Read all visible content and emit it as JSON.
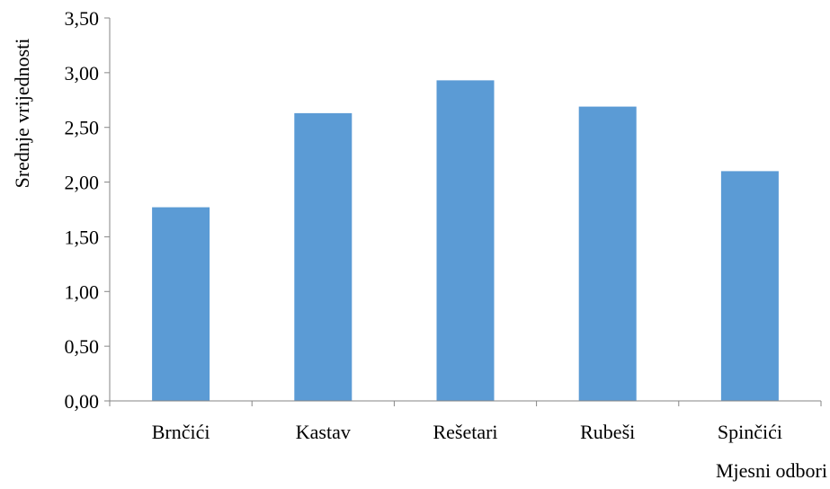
{
  "chart_data": {
    "type": "bar",
    "title": "",
    "xlabel": "Mjesni odbori",
    "ylabel": "Srednje vrijednosti",
    "categories": [
      "Brnčići",
      "Kastav",
      "Rešetari",
      "Rubeši",
      "Spinčići"
    ],
    "values": [
      1.77,
      2.63,
      2.93,
      2.69,
      2.1
    ],
    "ylim": [
      0,
      3.5
    ],
    "yticks": [
      0,
      0.5,
      1.0,
      1.5,
      2.0,
      2.5,
      3.0,
      3.5
    ],
    "ytick_labels": [
      "0,00",
      "0,50",
      "1,00",
      "1,50",
      "2,00",
      "2,50",
      "3,00",
      "3,50"
    ],
    "grid": false,
    "legend": "none",
    "colors": {
      "bar": "#5B9BD5",
      "axis": "#868686",
      "text": "#000000"
    }
  }
}
